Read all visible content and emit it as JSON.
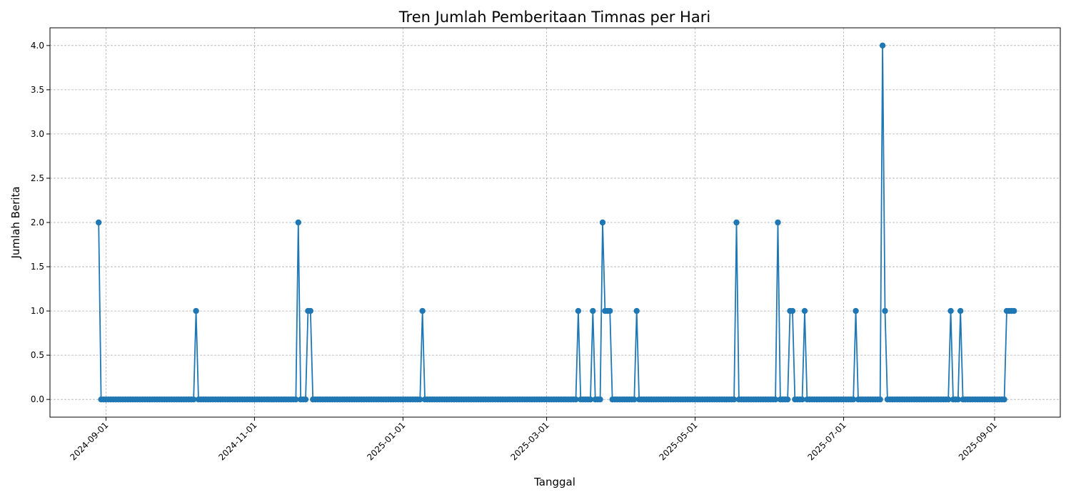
{
  "chart_data": {
    "type": "line",
    "title": "Tren Jumlah Pemberitaan Timnas per Hari",
    "xlabel": "Tanggal",
    "ylabel": "Jumlah Berita",
    "x_tick_labels": [
      "2024-09-01",
      "2024-11-01",
      "2025-01-01",
      "2025-03-01",
      "2025-05-01",
      "2025-07-01",
      "2025-09-01"
    ],
    "y_tick_labels": [
      "0.0",
      "0.5",
      "1.0",
      "1.5",
      "2.0",
      "2.5",
      "3.0",
      "3.5",
      "4.0"
    ],
    "xlim": [
      "2024-08-09",
      "2025-09-28"
    ],
    "ylim": [
      -0.2,
      4.2
    ],
    "grid": true,
    "series": [
      {
        "color": "#1f77b4",
        "marker": "circle",
        "start_date": "2024-08-29",
        "end_date": "2025-09-09",
        "default_value": 0,
        "nonzero_points": [
          {
            "x": "2024-08-29",
            "y": 2
          },
          {
            "x": "2024-10-08",
            "y": 1
          },
          {
            "x": "2024-11-19",
            "y": 2
          },
          {
            "x": "2024-11-23",
            "y": 1
          },
          {
            "x": "2024-11-24",
            "y": 1
          },
          {
            "x": "2025-01-09",
            "y": 1
          },
          {
            "x": "2025-03-14",
            "y": 1
          },
          {
            "x": "2025-03-20",
            "y": 1
          },
          {
            "x": "2025-03-24",
            "y": 2
          },
          {
            "x": "2025-03-25",
            "y": 1
          },
          {
            "x": "2025-03-26",
            "y": 1
          },
          {
            "x": "2025-03-27",
            "y": 1
          },
          {
            "x": "2025-04-07",
            "y": 1
          },
          {
            "x": "2025-05-18",
            "y": 2
          },
          {
            "x": "2025-06-04",
            "y": 2
          },
          {
            "x": "2025-06-09",
            "y": 1
          },
          {
            "x": "2025-06-10",
            "y": 1
          },
          {
            "x": "2025-06-15",
            "y": 1
          },
          {
            "x": "2025-07-06",
            "y": 1
          },
          {
            "x": "2025-07-17",
            "y": 4
          },
          {
            "x": "2025-07-18",
            "y": 1
          },
          {
            "x": "2025-08-14",
            "y": 1
          },
          {
            "x": "2025-08-18",
            "y": 1
          },
          {
            "x": "2025-09-06",
            "y": 1
          },
          {
            "x": "2025-09-07",
            "y": 1
          },
          {
            "x": "2025-09-08",
            "y": 1
          },
          {
            "x": "2025-09-09",
            "y": 1
          }
        ]
      }
    ]
  }
}
